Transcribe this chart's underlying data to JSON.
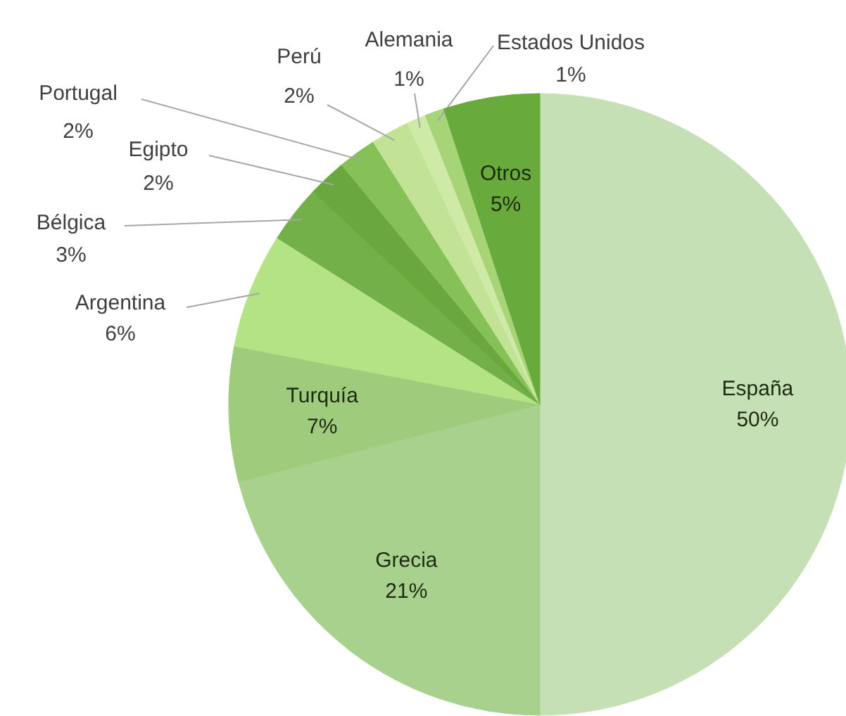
{
  "chart_data": {
    "type": "pie",
    "categories": [
      "España",
      "Grecia",
      "Turquía",
      "Argentina",
      "Bélgica",
      "Egipto",
      "Portugal",
      "Perú",
      "Alemania",
      "Estados Unidos",
      "Otros"
    ],
    "values": [
      50,
      21,
      7,
      6,
      3,
      2,
      2,
      2,
      1,
      1,
      5
    ],
    "colors": [
      "#c5e0b4",
      "#a9d18e",
      "#9fcc7c",
      "#b3e384",
      "#74b04a",
      "#6aa83e",
      "#86c157",
      "#c2e396",
      "#cfe9a6",
      "#a6d476",
      "#69aa3d"
    ],
    "value_labels": [
      "50%",
      "21%",
      "7%",
      "6%",
      "3%",
      "2%",
      "2%",
      "2%",
      "1%",
      "1%",
      "5%"
    ]
  }
}
